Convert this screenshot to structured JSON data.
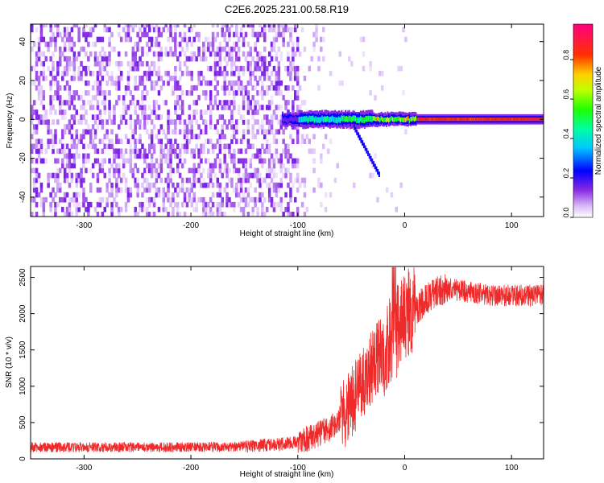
{
  "figure": {
    "title": "C2E6.2025.231.00.58.R19"
  },
  "colors": {
    "snr_line": "#ee2a2a",
    "axis": "#000000",
    "background": "#ffffff"
  },
  "chart_data": [
    {
      "type": "heatmap",
      "title": "C2E6.2025.231.00.58.R19",
      "xlabel": "Height of straight line (km)",
      "ylabel": "Frequency (Hz)",
      "xlim": [
        -350,
        130
      ],
      "ylim": [
        -50,
        49
      ],
      "x_ticks": [
        -300,
        -200,
        -100,
        0,
        100
      ],
      "y_ticks": [
        -40,
        -20,
        0,
        20,
        40
      ],
      "colorbar": {
        "label": "Normalized spectral amplitude",
        "range": [
          0.0,
          0.98
        ],
        "ticks": [
          0.0,
          0.2,
          0.4,
          0.6,
          0.8
        ],
        "tick_labels": [
          "0.0",
          "0.2",
          "0.4",
          "0.6",
          "0.8"
        ],
        "colormap": "rainbow-white"
      },
      "regions": [
        {
          "x_range": [
            -350,
            -100
          ],
          "description": "noise: scattered purple speckle at 0.0–0.2 over all frequencies"
        },
        {
          "x_range": [
            -100,
            10
          ],
          "description": "emerging carrier near 0 Hz, blue-green 0.3–0.5, tail down to -28 Hz at -25 km"
        },
        {
          "x_range": [
            10,
            130
          ],
          "description": "strong carrier line at 0 Hz, amplitude ~0.8–0.95"
        }
      ],
      "grid": false
    },
    {
      "type": "line",
      "xlabel": "Height of straight line (km)",
      "ylabel": "SNR (10 * v/v)",
      "xlim": [
        -350,
        130
      ],
      "ylim": [
        0,
        2650
      ],
      "x_ticks": [
        -300,
        -200,
        -100,
        0,
        100
      ],
      "y_ticks": [
        0,
        500,
        1000,
        1500,
        2000,
        2500
      ],
      "series": [
        {
          "color": "#ee2a2a",
          "x": [
            -350,
            -300,
            -250,
            -200,
            -150,
            -110,
            -90,
            -70,
            -55,
            -45,
            -35,
            -25,
            -15,
            -8,
            0,
            10,
            20,
            30,
            40,
            60,
            80,
            100,
            130
          ],
          "y": [
            160,
            160,
            160,
            160,
            170,
            210,
            280,
            420,
            650,
            900,
            1150,
            1400,
            1550,
            1750,
            1950,
            2050,
            2200,
            2300,
            2350,
            2300,
            2250,
            2250,
            2250
          ],
          "noise": "high-frequency jitter of ~±80 at low heights growing to ±600 between -60 and 10 km"
        }
      ],
      "grid": false
    }
  ]
}
